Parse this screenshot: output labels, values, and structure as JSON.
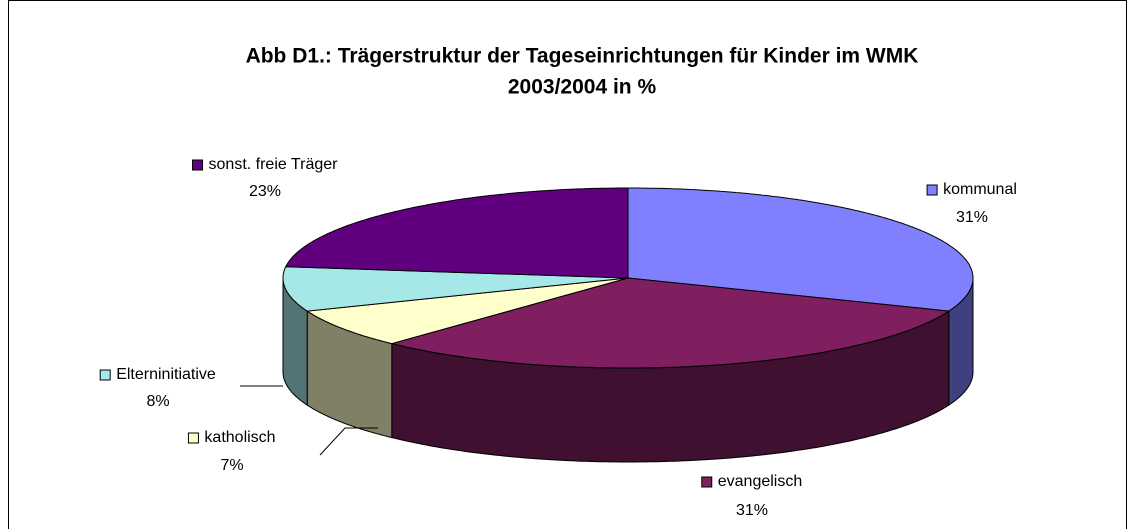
{
  "chart_data": {
    "type": "pie3d",
    "title": [
      "Abb D1.: Trägerstruktur der Tageseinrichtungen für Kinder im WMK",
      "2003/2004 in %"
    ],
    "categories": [
      "kommunal",
      "evangelisch",
      "katholisch",
      "Elterninitiative",
      "sonst. freie Träger"
    ],
    "values": [
      31,
      31,
      7,
      8,
      23
    ],
    "value_labels": [
      "31%",
      "31%",
      "7%",
      "8%",
      "23%"
    ],
    "colors": [
      "#8080ff",
      "#7f1f5f",
      "#ffffcc",
      "#a6e8e8",
      "#60007f"
    ]
  }
}
